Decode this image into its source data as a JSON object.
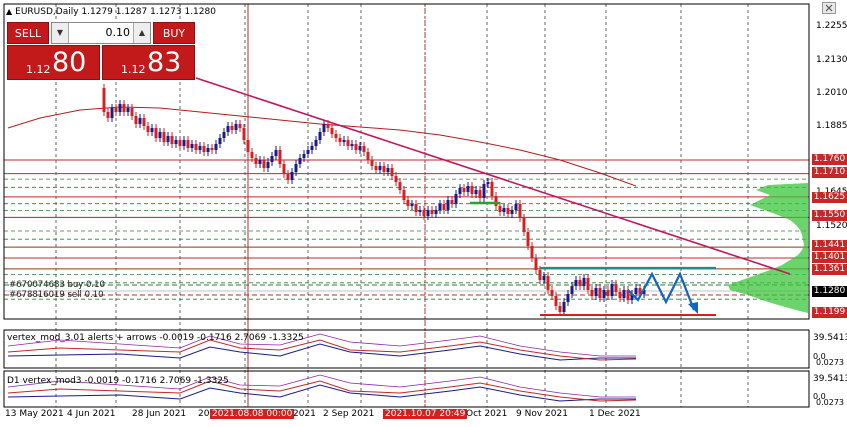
{
  "header": {
    "symbol_line": "EURUSD,Daily  1.1279 1.1287 1.1273 1.1280",
    "collapse_icon": "triangle-up-icon"
  },
  "trade_panel": {
    "sell_label": "SELL",
    "buy_label": "BUY",
    "lot_value": "0.10",
    "bid_small": "1.12",
    "bid_big": "80",
    "ask_small": "1.12",
    "ask_big": "83",
    "color": "#c21a1a"
  },
  "price_axis": {
    "labels": [
      "1.2255",
      "1.2130",
      "1.2010",
      "1.1885",
      "1.1645",
      "1.1520",
      "1.1280"
    ],
    "tags": [
      {
        "text": "1.1760",
        "color": "#c62828"
      },
      {
        "text": "1.1710",
        "color": "#c62828"
      },
      {
        "text": "1.1625",
        "color": "#c62828"
      },
      {
        "text": "1.1550",
        "color": "#c62828"
      },
      {
        "text": "1.1441",
        "color": "#c62828"
      },
      {
        "text": "1.1401",
        "color": "#c62828"
      },
      {
        "text": "1.1361",
        "color": "#c62828"
      },
      {
        "text": "1.1280",
        "color": "#000000"
      },
      {
        "text": "1.1199",
        "color": "#c62828"
      }
    ]
  },
  "orders": {
    "buy_order": "#670074683 buy 0.10",
    "sell_order": "#678816019 sell 0.10"
  },
  "indicator1": {
    "label": "vertex_mod_3.01 alerts + arrows -0.0019 -0.1716 2.7069 -1.3325",
    "axis_top": "39.5413",
    "axis_mid": "0.0",
    "axis_low": "0.0273"
  },
  "indicator2": {
    "label": "D1 vertex_mod3 -0.0019 -0.1716 2.7069 -1.3325",
    "axis_top": "39.5413",
    "axis_mid": "0.0",
    "axis_low": "0.0273"
  },
  "time_axis": {
    "labels": [
      "13 May 2021",
      "4 Jun 2021",
      "28 Jun 2021",
      "20",
      "2021",
      "2 Sep 2021",
      "Oct 2021",
      "9 Nov 2021",
      "1 Dec 2021"
    ],
    "highlighted": [
      "2021.08.08 00:00",
      "2021.10.07 20:49"
    ]
  },
  "colors": {
    "bull": "#1a1a8c",
    "bear": "#d42020",
    "trendline": "#c2185b",
    "ma": "#b71c1c",
    "channel": "#1f8a8a",
    "volume_profile": "#3cc43c",
    "arrow_pattern": "#1565c0"
  }
}
